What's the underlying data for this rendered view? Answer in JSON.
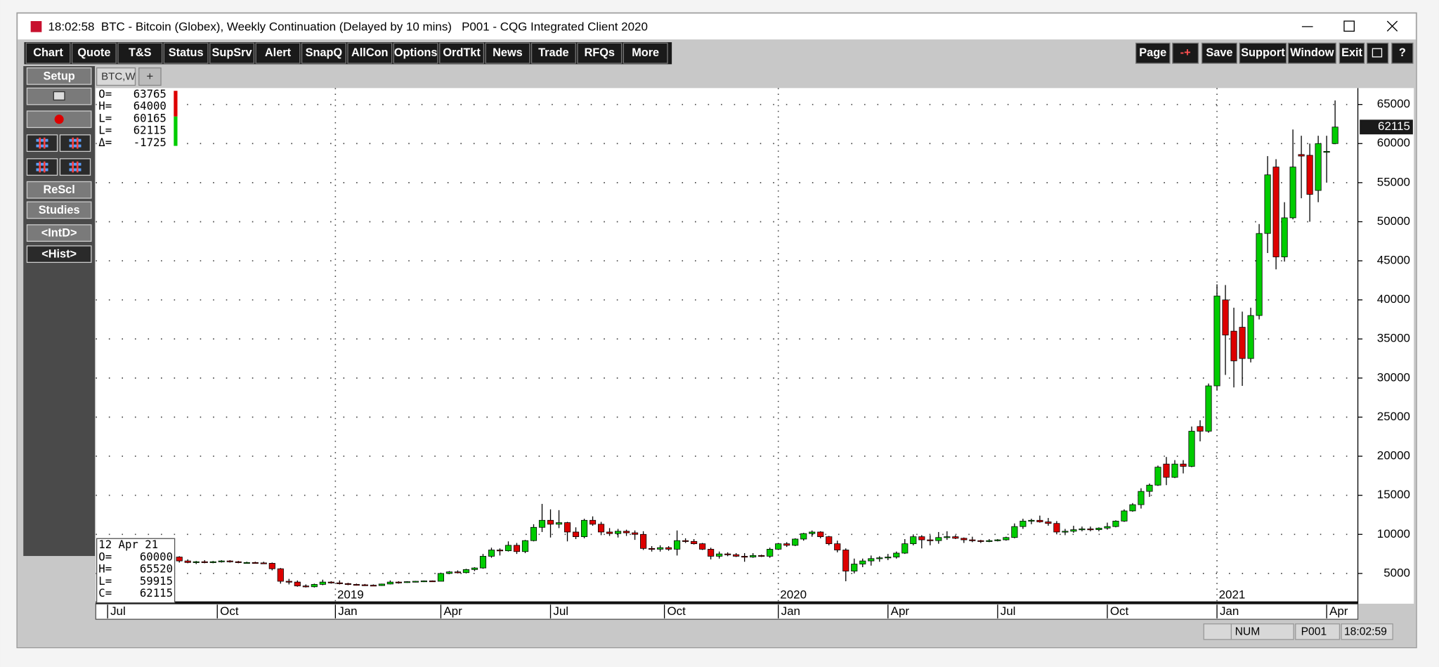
{
  "window": {
    "title": "18:02:58  BTC - Bitcoin (Globex), Weekly Continuation (Delayed by 10 mins)   P001 - CQG Integrated Client 2020"
  },
  "toolbar": {
    "left": [
      "Chart",
      "Quote",
      "T&S",
      "Status",
      "SupSrv",
      "Alert",
      "SnapQ",
      "AllCon",
      "Options",
      "OrdTkt",
      "News",
      "Trade",
      "RFQs",
      "More"
    ],
    "right": [
      "Page",
      "-+",
      "Save",
      "Support",
      "Window",
      "Exit",
      "?"
    ]
  },
  "side_panel": {
    "setup": "Setup",
    "rescale": "ReScl",
    "studies": "Studies",
    "intraday": "<IntD>",
    "history": "<Hist>"
  },
  "tabs": {
    "active": "BTC,W",
    "add": "+"
  },
  "quote_box": {
    "labels": [
      "O=",
      "H=",
      "L=",
      "L=",
      "Δ="
    ],
    "values": [
      63765,
      64000,
      60165,
      62115,
      -1725
    ]
  },
  "cursor_box": {
    "date": "12 Apr 21",
    "labels": [
      "O=",
      "H=",
      "L=",
      "C="
    ]
  },
  "status_bar": {
    "num": "NUM",
    "page": "P001",
    "time": "18:02:59"
  },
  "chart_data": {
    "type": "candlestick",
    "grid": true,
    "up_color": "#00cc00",
    "down_color": "#dd0000",
    "xlim": [
      -9.9,
      139.7
    ],
    "xticks": [
      {
        "value": -8.5,
        "label": "Jul"
      },
      {
        "value": 4.5,
        "label": "Oct"
      },
      {
        "value": 18.5,
        "label": "Jan"
      },
      {
        "value": 31,
        "label": "Apr"
      },
      {
        "value": 44,
        "label": "Jul"
      },
      {
        "value": 57.5,
        "label": "Oct"
      },
      {
        "value": 71,
        "label": "Jan"
      },
      {
        "value": 84,
        "label": "Apr"
      },
      {
        "value": 97,
        "label": "Jul"
      },
      {
        "value": 110,
        "label": "Oct"
      },
      {
        "value": 123,
        "label": "Jan"
      },
      {
        "value": 136,
        "label": "Apr"
      }
    ],
    "year_labels": [
      {
        "value": 18.5,
        "label": "2019"
      },
      {
        "value": 71,
        "label": "2020"
      },
      {
        "value": 123,
        "label": "2021"
      }
    ],
    "ylim": [
      1130,
      67100
    ],
    "yticks": [
      5000,
      10000,
      15000,
      20000,
      25000,
      30000,
      35000,
      40000,
      45000,
      50000,
      55000,
      60000,
      65000
    ],
    "open": [
      7100,
      6600,
      6400,
      6500,
      6400,
      6500,
      6600,
      6500,
      6400,
      6400,
      6350,
      6300,
      5600,
      4000,
      3900,
      3400,
      3300,
      3600,
      3900,
      3800,
      3700,
      3600,
      3550,
      3500,
      3450,
      3650,
      3900,
      3850,
      3950,
      4000,
      4050,
      4000,
      5000,
      5200,
      5100,
      5500,
      5700,
      7200,
      8000,
      7900,
      8600,
      7800,
      9200,
      10900,
      11800,
      11300,
      11500,
      10300,
      9700,
      11800,
      11300,
      10300,
      10100,
      10400,
      10200,
      10000,
      8200,
      8100,
      8300,
      8100,
      9200,
      9100,
      8800,
      8100,
      7200,
      7500,
      7400,
      7200,
      7100,
      7300,
      7200,
      8100,
      8800,
      8600,
      9400,
      10100,
      10300,
      9700,
      8800,
      8000,
      5300,
      6200,
      6600,
      6900,
      7000,
      7100,
      7600,
      8800,
      9700,
      9300,
      9200,
      9600,
      9700,
      9500,
      9300,
      9200,
      9100,
      9200,
      9300,
      9600,
      11000,
      11700,
      11800,
      11600,
      11400,
      10300,
      10400,
      10600,
      10700,
      10600,
      10800,
      11000,
      11700,
      13000,
      13800,
      15500,
      16300,
      19000,
      17300,
      19000,
      18700,
      23800,
      23200,
      29000,
      40000,
      36000,
      36500,
      32500,
      38000,
      48500,
      57000,
      45500,
      50500,
      58600,
      58500,
      54000,
      59000,
      60000
    ],
    "high": [
      7200,
      6800,
      6600,
      6700,
      6600,
      6700,
      6700,
      6600,
      6500,
      6500,
      6500,
      6400,
      5700,
      4300,
      4100,
      3600,
      3700,
      4200,
      4000,
      4100,
      3800,
      3700,
      3650,
      3600,
      3700,
      4100,
      4000,
      4000,
      4050,
      4100,
      4100,
      5100,
      5300,
      5400,
      5600,
      5800,
      7500,
      8300,
      8200,
      9100,
      8900,
      9300,
      11300,
      13900,
      13200,
      13100,
      11600,
      10900,
      12000,
      12300,
      11600,
      10800,
      10700,
      10600,
      10500,
      10400,
      8500,
      8600,
      8500,
      10500,
      9500,
      9400,
      8900,
      8300,
      7800,
      7700,
      7600,
      7600,
      7600,
      7400,
      8300,
      8900,
      9000,
      9500,
      10200,
      10500,
      10400,
      9800,
      9200,
      8200,
      6900,
      6900,
      7300,
      7200,
      7500,
      7800,
      9400,
      10000,
      9900,
      9900,
      10300,
      10400,
      9900,
      9600,
      9700,
      9300,
      9400,
      9400,
      9700,
      11400,
      12000,
      12000,
      12400,
      12100,
      11700,
      10700,
      11100,
      11000,
      11000,
      10900,
      11500,
      11800,
      13200,
      14000,
      15900,
      16500,
      18800,
      19900,
      19500,
      19500,
      23800,
      24600,
      29300,
      42000,
      41900,
      39000,
      38500,
      39000,
      49700,
      58400,
      58000,
      52500,
      61800,
      61000,
      60000,
      61000,
      61000,
      65520
    ],
    "low": [
      6400,
      6300,
      6200,
      6300,
      6300,
      6400,
      6400,
      6300,
      6300,
      6300,
      6200,
      5400,
      3700,
      3600,
      3300,
      3200,
      3200,
      3500,
      3700,
      3600,
      3500,
      3450,
      3400,
      3400,
      3400,
      3600,
      3700,
      3800,
      3850,
      3900,
      3950,
      4000,
      4900,
      5000,
      5000,
      5300,
      5600,
      7000,
      7300,
      7800,
      7500,
      7600,
      9100,
      10300,
      9600,
      10800,
      9100,
      9400,
      9500,
      11100,
      9900,
      9800,
      9600,
      9800,
      9300,
      8000,
      7800,
      7800,
      7900,
      7300,
      8900,
      8700,
      8000,
      6800,
      6900,
      7200,
      7100,
      6500,
      7000,
      7100,
      7000,
      8000,
      8400,
      8500,
      9200,
      9700,
      9500,
      8600,
      7700,
      4000,
      5000,
      5800,
      6000,
      6500,
      6700,
      6900,
      7500,
      8600,
      8200,
      8600,
      8800,
      9300,
      9400,
      8900,
      9000,
      8900,
      9000,
      9100,
      9200,
      9500,
      10700,
      11300,
      11500,
      11100,
      10000,
      9900,
      10200,
      10400,
      10400,
      10400,
      10600,
      10900,
      11600,
      12900,
      13300,
      14800,
      16200,
      16300,
      17200,
      17800,
      18600,
      21900,
      23000,
      28500,
      30400,
      28800,
      29000,
      32000,
      37500,
      46000,
      43900,
      44900,
      50300,
      53000,
      50000,
      52500,
      55000,
      59915
    ],
    "close": [
      6600,
      6400,
      6500,
      6400,
      6500,
      6600,
      6500,
      6400,
      6400,
      6350,
      6300,
      5600,
      4000,
      3900,
      3400,
      3300,
      3600,
      3900,
      3800,
      3700,
      3600,
      3550,
      3500,
      3450,
      3650,
      3900,
      3850,
      3950,
      4000,
      4050,
      4000,
      5000,
      5200,
      5100,
      5500,
      5700,
      7200,
      8000,
      7900,
      8600,
      7800,
      9200,
      10900,
      11800,
      11300,
      11500,
      10300,
      9700,
      11800,
      11300,
      10300,
      10100,
      10400,
      10200,
      10000,
      8200,
      8100,
      8300,
      8100,
      9200,
      9100,
      8800,
      8100,
      7200,
      7500,
      7400,
      7200,
      7100,
      7300,
      7200,
      8100,
      8800,
      8600,
      9400,
      10100,
      10300,
      9700,
      8800,
      8000,
      5300,
      6200,
      6600,
      6900,
      7000,
      7100,
      7600,
      8800,
      9700,
      9300,
      9200,
      9600,
      9700,
      9500,
      9300,
      9200,
      9100,
      9200,
      9300,
      9600,
      11000,
      11700,
      11800,
      11600,
      11400,
      10300,
      10400,
      10600,
      10700,
      10600,
      10800,
      11000,
      11700,
      13000,
      13800,
      15500,
      16300,
      18600,
      17300,
      19000,
      18700,
      23200,
      23200,
      29000,
      40500,
      35500,
      32200,
      32500,
      38000,
      48500,
      56000,
      45500,
      50500,
      57000,
      58400,
      53500,
      60000,
      59000,
      62115
    ]
  }
}
